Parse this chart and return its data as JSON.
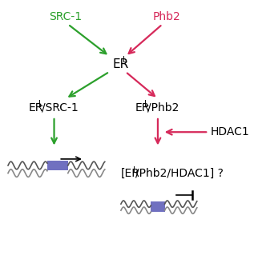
{
  "fig_width": 3.17,
  "fig_height": 3.24,
  "dpi": 100,
  "bg_color": "#ffffff",
  "green": "#2ca02c",
  "pink": "#d6295a",
  "dark": "#333333",
  "black": "#000000",
  "labels": {
    "src1": "SRC-1",
    "phb2": "Phb2",
    "er": "ER",
    "er_src1": "ER",
    "er_phb2": "ER",
    "hdac1": "HDAC1",
    "complex": "[ER",
    "complex2": "/Phb2/HDAC1] ?"
  },
  "superscripts": {
    "er_L": "L",
    "er_src1_L": "L",
    "er_phb2_L": "L",
    "complex_L": "L"
  }
}
